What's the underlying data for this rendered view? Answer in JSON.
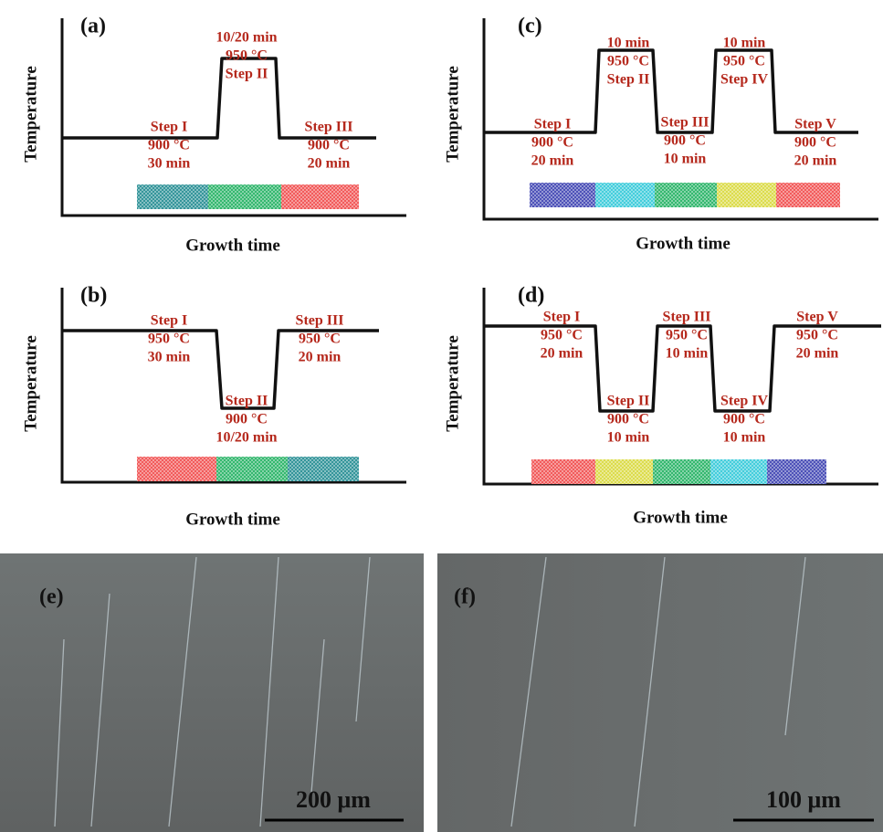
{
  "panels": [
    {
      "label": "(a)",
      "y_label": "Temperature",
      "x_label": "Growth time",
      "annotations": [
        [
          "Step I",
          "900 °C",
          "30 min"
        ],
        [
          "10/20 min",
          "950 °C",
          "Step II"
        ],
        [
          "Step III",
          "900 °C",
          "20 min"
        ]
      ]
    },
    {
      "label": "(b)",
      "y_label": "Temperature",
      "x_label": "Growth time",
      "annotations": [
        [
          "Step I",
          "950 °C",
          "30 min"
        ],
        [
          "Step II",
          "900 °C",
          "10/20 min"
        ],
        [
          "Step III",
          "950 °C",
          "20 min"
        ]
      ]
    },
    {
      "label": "(c)",
      "y_label": "Temperature",
      "x_label": "Growth time",
      "annotations": [
        [
          "Step I",
          "900 °C",
          "20 min"
        ],
        [
          "10 min",
          "950 °C",
          "Step II"
        ],
        [
          "Step III",
          "900 °C",
          "10 min"
        ],
        [
          "10 min",
          "950 °C",
          "Step IV"
        ],
        [
          "Step V",
          "900 °C",
          "20 min"
        ]
      ]
    },
    {
      "label": "(d)",
      "y_label": "Temperature",
      "x_label": "Growth time",
      "annotations": [
        [
          "Step I",
          "950 °C",
          "20 min"
        ],
        [
          "Step II",
          "900 °C",
          "10 min"
        ],
        [
          "Step III",
          "950 °C",
          "10 min"
        ],
        [
          "Step IV",
          "900 °C",
          "10 min"
        ],
        [
          "Step V",
          "950 °C",
          "20 min"
        ]
      ]
    }
  ],
  "images": [
    {
      "label": "(e)",
      "scale_bar": "200 μm"
    },
    {
      "label": "(f)",
      "scale_bar": "100 μm"
    }
  ]
}
